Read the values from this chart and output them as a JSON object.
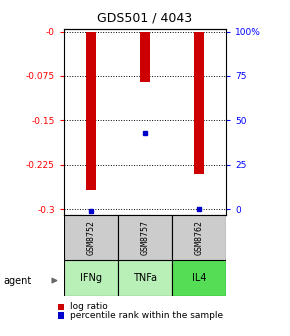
{
  "title": "GDS501 / 4043",
  "samples": [
    "GSM8752",
    "GSM8757",
    "GSM8762"
  ],
  "agents": [
    "IFNg",
    "TNFa",
    "IL4"
  ],
  "log_ratios": [
    -0.268,
    -0.085,
    -0.24
  ],
  "percentile_ranks": [
    0.02,
    0.44,
    0.03
  ],
  "ylim_left": [
    -0.31,
    0.005
  ],
  "ylim_right": [
    -3.1,
    0.05
  ],
  "yticks_left": [
    0,
    -0.075,
    -0.15,
    -0.225,
    -0.3
  ],
  "ytick_labels_left": [
    "-0",
    "-0.075",
    "-0.15",
    "-0.225",
    "-0.3"
  ],
  "ytick_labels_right": [
    "100%",
    "75",
    "50",
    "25",
    "0"
  ],
  "bar_color": "#cc0000",
  "percentile_color": "#0000cc",
  "sample_bg_color": "#cccccc",
  "agent_colors": [
    "#b8f0b8",
    "#b8f0b8",
    "#55dd55"
  ],
  "bar_width": 0.18,
  "legend_labels": [
    "log ratio",
    "percentile rank within the sample"
  ],
  "fig_width": 2.9,
  "fig_height": 3.36,
  "dpi": 100
}
